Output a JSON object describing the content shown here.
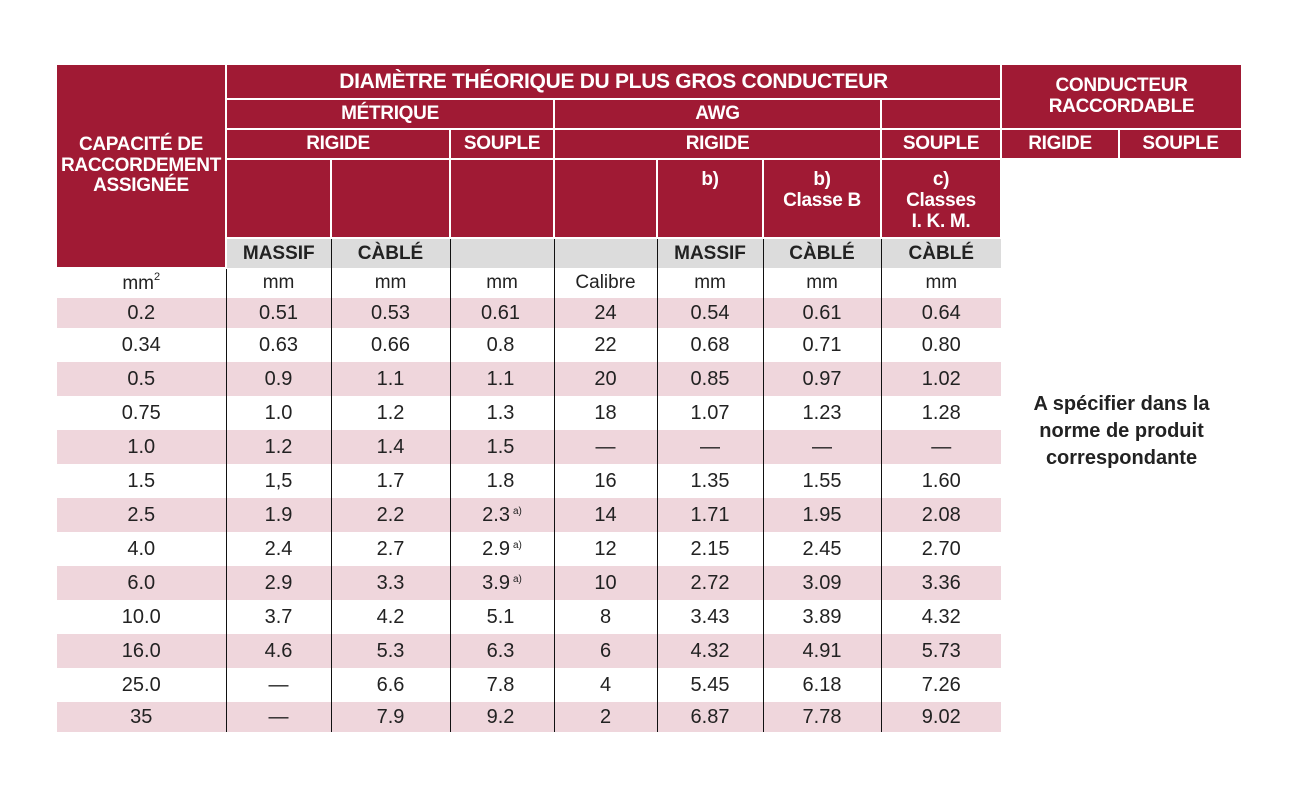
{
  "header": {
    "capacity": "CAPACITÉ DE RACCORDEMENT ASSIGNÉE",
    "diameter": "DIAMÈTRE THÉORIQUE DU PLUS GROS CONDUCTEUR",
    "conductor": "CONDUCTEUR RACCORDABLE",
    "metric": "MÉTRIQUE",
    "awg": "AWG",
    "rigid": "RIGIDE",
    "flexible": "SOUPLE",
    "awg_rigid": "RIGIDE",
    "awg_flexible": "SOUPLE",
    "cond_rigid": "RIGIDE",
    "cond_flexible": "SOUPLE",
    "note_b1": "b)",
    "note_b2_line1": "b)",
    "note_b2_line2": "Classe B",
    "note_c_line1": "c)",
    "note_c_line2": "Classes",
    "note_c_line3": "I. K. M."
  },
  "subheader": {
    "m_massif": "MASSIF",
    "m_cable": "CÀBLÉ",
    "a_massif": "MASSIF",
    "a_cable": "CÀBLÉ",
    "a_cable2": "CÀBLÉ"
  },
  "units": {
    "mm2": "mm",
    "mm2_exp": "2",
    "u1": "mm",
    "u2": "mm",
    "u3": "mm",
    "u4": "Calibre",
    "u5": "mm",
    "u6": "mm",
    "u7": "mm"
  },
  "rows": [
    {
      "cap": "0.2",
      "m_massif": "0.51",
      "m_cable": "0.53",
      "m_souple": "0.61",
      "fn": "",
      "calibre": "24",
      "a_massif": "0.54",
      "a_cable": "0.61",
      "a_souple": "0.64"
    },
    {
      "cap": "0.34",
      "m_massif": "0.63",
      "m_cable": "0.66",
      "m_souple": "0.8",
      "fn": "",
      "calibre": "22",
      "a_massif": "0.68",
      "a_cable": "0.71",
      "a_souple": "0.80"
    },
    {
      "cap": "0.5",
      "m_massif": "0.9",
      "m_cable": "1.1",
      "m_souple": "1.1",
      "fn": "",
      "calibre": "20",
      "a_massif": "0.85",
      "a_cable": "0.97",
      "a_souple": "1.02"
    },
    {
      "cap": "0.75",
      "m_massif": "1.0",
      "m_cable": "1.2",
      "m_souple": "1.3",
      "fn": "",
      "calibre": "18",
      "a_massif": "1.07",
      "a_cable": "1.23",
      "a_souple": "1.28"
    },
    {
      "cap": "1.0",
      "m_massif": "1.2",
      "m_cable": "1.4",
      "m_souple": "1.5",
      "fn": "",
      "calibre": "—",
      "a_massif": "—",
      "a_cable": "—",
      "a_souple": "—"
    },
    {
      "cap": "1.5",
      "m_massif": "1,5",
      "m_cable": "1.7",
      "m_souple": "1.8",
      "fn": "",
      "calibre": "16",
      "a_massif": "1.35",
      "a_cable": "1.55",
      "a_souple": "1.60"
    },
    {
      "cap": "2.5",
      "m_massif": "1.9",
      "m_cable": "2.2",
      "m_souple": "2.3",
      "fn": "a)",
      "calibre": "14",
      "a_massif": "1.71",
      "a_cable": "1.95",
      "a_souple": "2.08"
    },
    {
      "cap": "4.0",
      "m_massif": "2.4",
      "m_cable": "2.7",
      "m_souple": "2.9",
      "fn": "a)",
      "calibre": "12",
      "a_massif": "2.15",
      "a_cable": "2.45",
      "a_souple": "2.70"
    },
    {
      "cap": "6.0",
      "m_massif": "2.9",
      "m_cable": "3.3",
      "m_souple": "3.9",
      "fn": "a)",
      "calibre": "10",
      "a_massif": "2.72",
      "a_cable": "3.09",
      "a_souple": "3.36"
    },
    {
      "cap": "10.0",
      "m_massif": "3.7",
      "m_cable": "4.2",
      "m_souple": "5.1",
      "fn": "",
      "calibre": "8",
      "a_massif": "3.43",
      "a_cable": "3.89",
      "a_souple": "4.32"
    },
    {
      "cap": "16.0",
      "m_massif": "4.6",
      "m_cable": "5.3",
      "m_souple": "6.3",
      "fn": "",
      "calibre": "6",
      "a_massif": "4.32",
      "a_cable": "4.91",
      "a_souple": "5.73"
    },
    {
      "cap": "25.0",
      "m_massif": "—",
      "m_cable": "6.6",
      "m_souple": "7.8",
      "fn": "",
      "calibre": "4",
      "a_massif": "5.45",
      "a_cable": "6.18",
      "a_souple": "7.26"
    },
    {
      "cap": "35",
      "m_massif": "—",
      "m_cable": "7.9",
      "m_souple": "9.2",
      "fn": "",
      "calibre": "2",
      "a_massif": "6.87",
      "a_cable": "7.78",
      "a_souple": "9.02"
    }
  ],
  "note": "A spécifier dans la norme de produit correspondante",
  "colors": {
    "header": "#a01a34",
    "pink_row": "#efd6dc",
    "gray_row": "#dcdcdc"
  }
}
